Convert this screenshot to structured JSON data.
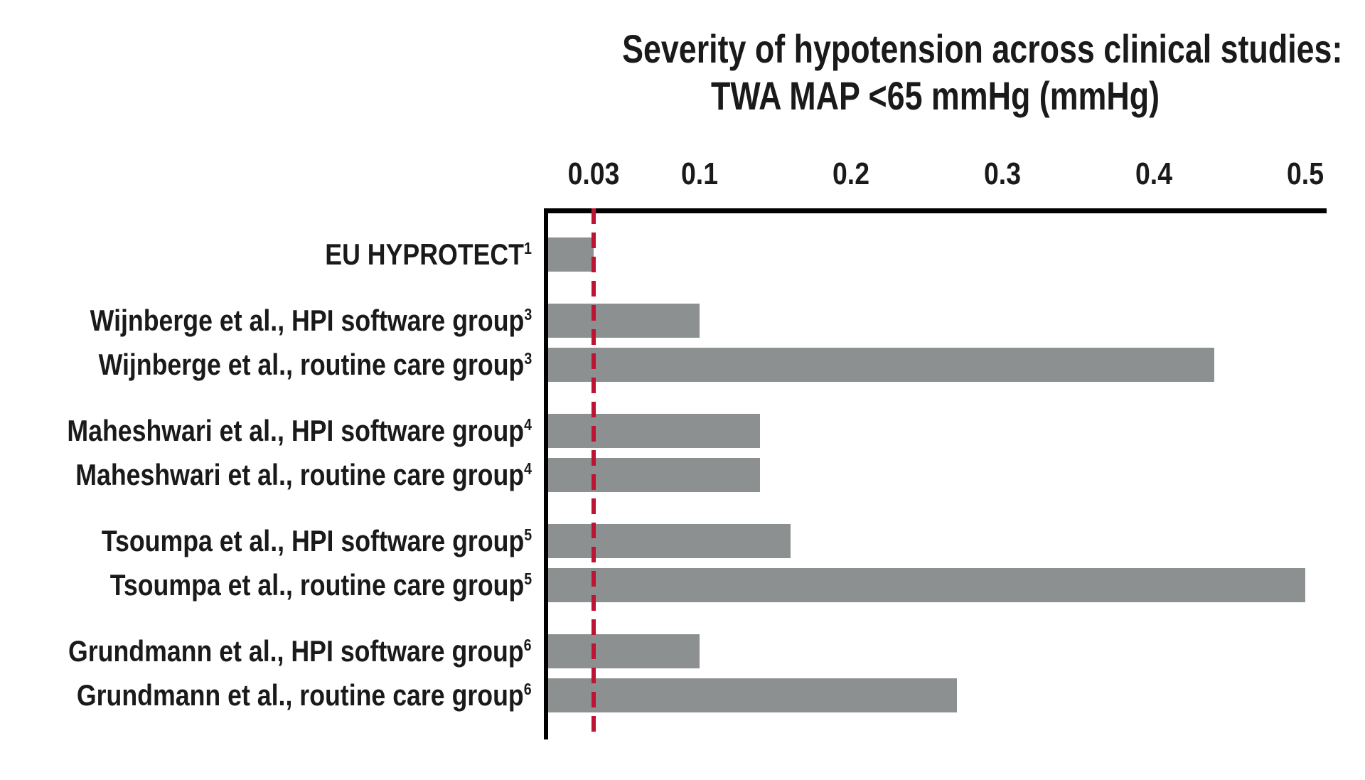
{
  "page": {
    "background": "#ffffff"
  },
  "chart_data": {
    "type": "bar",
    "orientation": "horizontal",
    "title_line1": "Severity of hypotension across clinical studies:",
    "title_line2": "TWA MAP <65 mmHg (mmHg)",
    "x_axis": {
      "position": "top",
      "ticks": [
        "0.03",
        "0.1",
        "0.2",
        "0.3",
        "0.4",
        "0.5"
      ],
      "tick_values": [
        0.03,
        0.1,
        0.2,
        0.3,
        0.4,
        0.5
      ],
      "range": [
        0,
        0.514
      ],
      "grid": false
    },
    "reference_line": {
      "value": 0.03,
      "style": "dashed",
      "color": "#be1433"
    },
    "bar_color": "#8d9090",
    "axis_color": "#000000",
    "categories": [
      "EU HYPROTECT¹",
      "Wijnberge et al., HPI software group³",
      "Wijnberge et al., routine care group³",
      "Maheshwari et al., HPI software group⁴",
      "Maheshwari et al., routine care group⁴",
      "Tsoumpa et al., HPI software group⁵",
      "Tsoumpa et al., routine care group⁵",
      "Grundmann et al., HPI software group⁶",
      "Grundmann et al., routine care group⁶"
    ],
    "values": [
      0.03,
      0.1,
      0.44,
      0.14,
      0.14,
      0.16,
      0.5,
      0.1,
      0.27
    ],
    "rows": [
      {
        "label": "EU HYPROTECT",
        "sup": "1",
        "value": 0.03,
        "new_group": true
      },
      {
        "label": "Wijnberge et al., HPI software group",
        "sup": "3",
        "value": 0.1,
        "new_group": true
      },
      {
        "label": "Wijnberge et al., routine care group",
        "sup": "3",
        "value": 0.44,
        "new_group": false
      },
      {
        "label": "Maheshwari et al., HPI software group",
        "sup": "4",
        "value": 0.14,
        "new_group": true
      },
      {
        "label": "Maheshwari et al., routine care group",
        "sup": "4",
        "value": 0.14,
        "new_group": false
      },
      {
        "label": "Tsoumpa et al., HPI software group",
        "sup": "5",
        "value": 0.16,
        "new_group": true
      },
      {
        "label": "Tsoumpa et al., routine care group",
        "sup": "5",
        "value": 0.5,
        "new_group": false
      },
      {
        "label": "Grundmann et al., HPI software group",
        "sup": "6",
        "value": 0.1,
        "new_group": true
      },
      {
        "label": "Grundmann et al., routine care group",
        "sup": "6",
        "value": 0.27,
        "new_group": false
      }
    ]
  }
}
